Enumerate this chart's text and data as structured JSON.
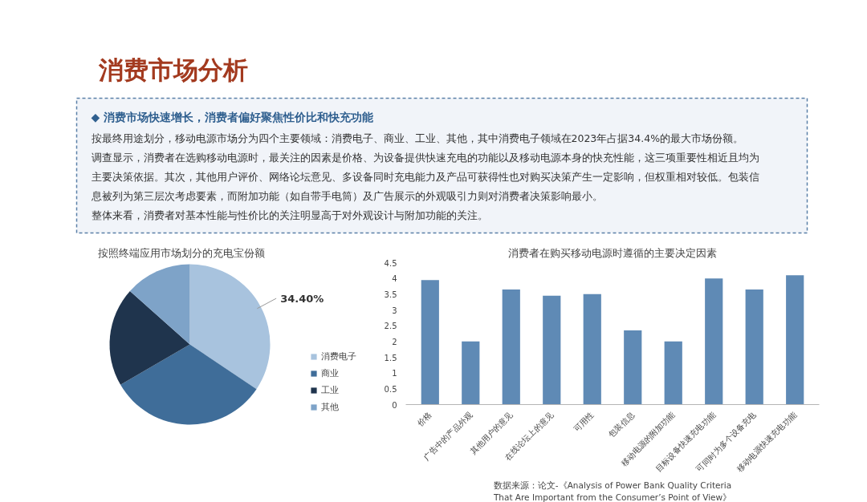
{
  "chart_data": [
    {
      "type": "other",
      "title": "消费市场分析",
      "subtitle": "◆ 消费市场快速增长，消费者偏好聚焦性价比和快充功能",
      "annotations": [
        "按最终用途划分，移动电源市场分为四个主要领域：消费电子、商业、工业、其他，其中消费电子领域在2023年占据34.4%的最大市场份额。",
        "调查显示，消费者在选购移动电源时，最关注的因素是价格、为设备提供快速充电的功能以及移动电源本身的快充性能，这三项重要性相近且均为主要决策依据。其次，其他用户评价、网络论坛意见、多设备同时充电能力及产品可获得性也对购买决策产生一定影响，但权重相对较低。包装信息被列为第三层次考虑要素，而附加功能（如自带手电筒）及广告展示的外观吸引力则对消费者决策影响最小。",
        "整体来看，消费者对基本性能与性价比的关注明显高于对外观设计与附加功能的关注。"
      ]
    },
    {
      "type": "pie",
      "title": "按照终端应用市场划分的充电宝份额",
      "categories": [
        "消费电子",
        "商业",
        "工业",
        "其他"
      ],
      "values": [
        34.4,
        32.2,
        20,
        13.4
      ],
      "colors": [
        "#a8c3de",
        "#3f6d99",
        "#1f344d",
        "#7ea3c8"
      ],
      "value_labels": [
        "34.40%",
        null,
        null,
        null
      ],
      "legend": "right"
    },
    {
      "type": "bar",
      "title": "消费者在购买移动电源时遵循的主要决定因素",
      "categories": [
        "价格",
        "广告中的产品外观",
        "其他用户的意见",
        "在线论坛上的意见",
        "可用性",
        "包装信息",
        "移动电源的附加功能",
        "目标设备快速充电功能",
        "可同时为多个设备充电",
        "移动电源快速充电功能"
      ],
      "values": [
        3.95,
        2,
        3.65,
        3.45,
        3.5,
        2.35,
        2,
        4,
        3.65,
        4.1
      ],
      "color": "#5f8ab5",
      "ylim": [
        0,
        4.5
      ],
      "yticks": [
        0,
        0.5,
        1,
        1.5,
        2,
        2.5,
        3,
        3.5,
        4,
        4.5
      ],
      "annotations": [
        "数据来源：论文-《Analysis of Power Bank Quality Criteria That Are Important from the Consumer’s Point of View》"
      ]
    }
  ]
}
